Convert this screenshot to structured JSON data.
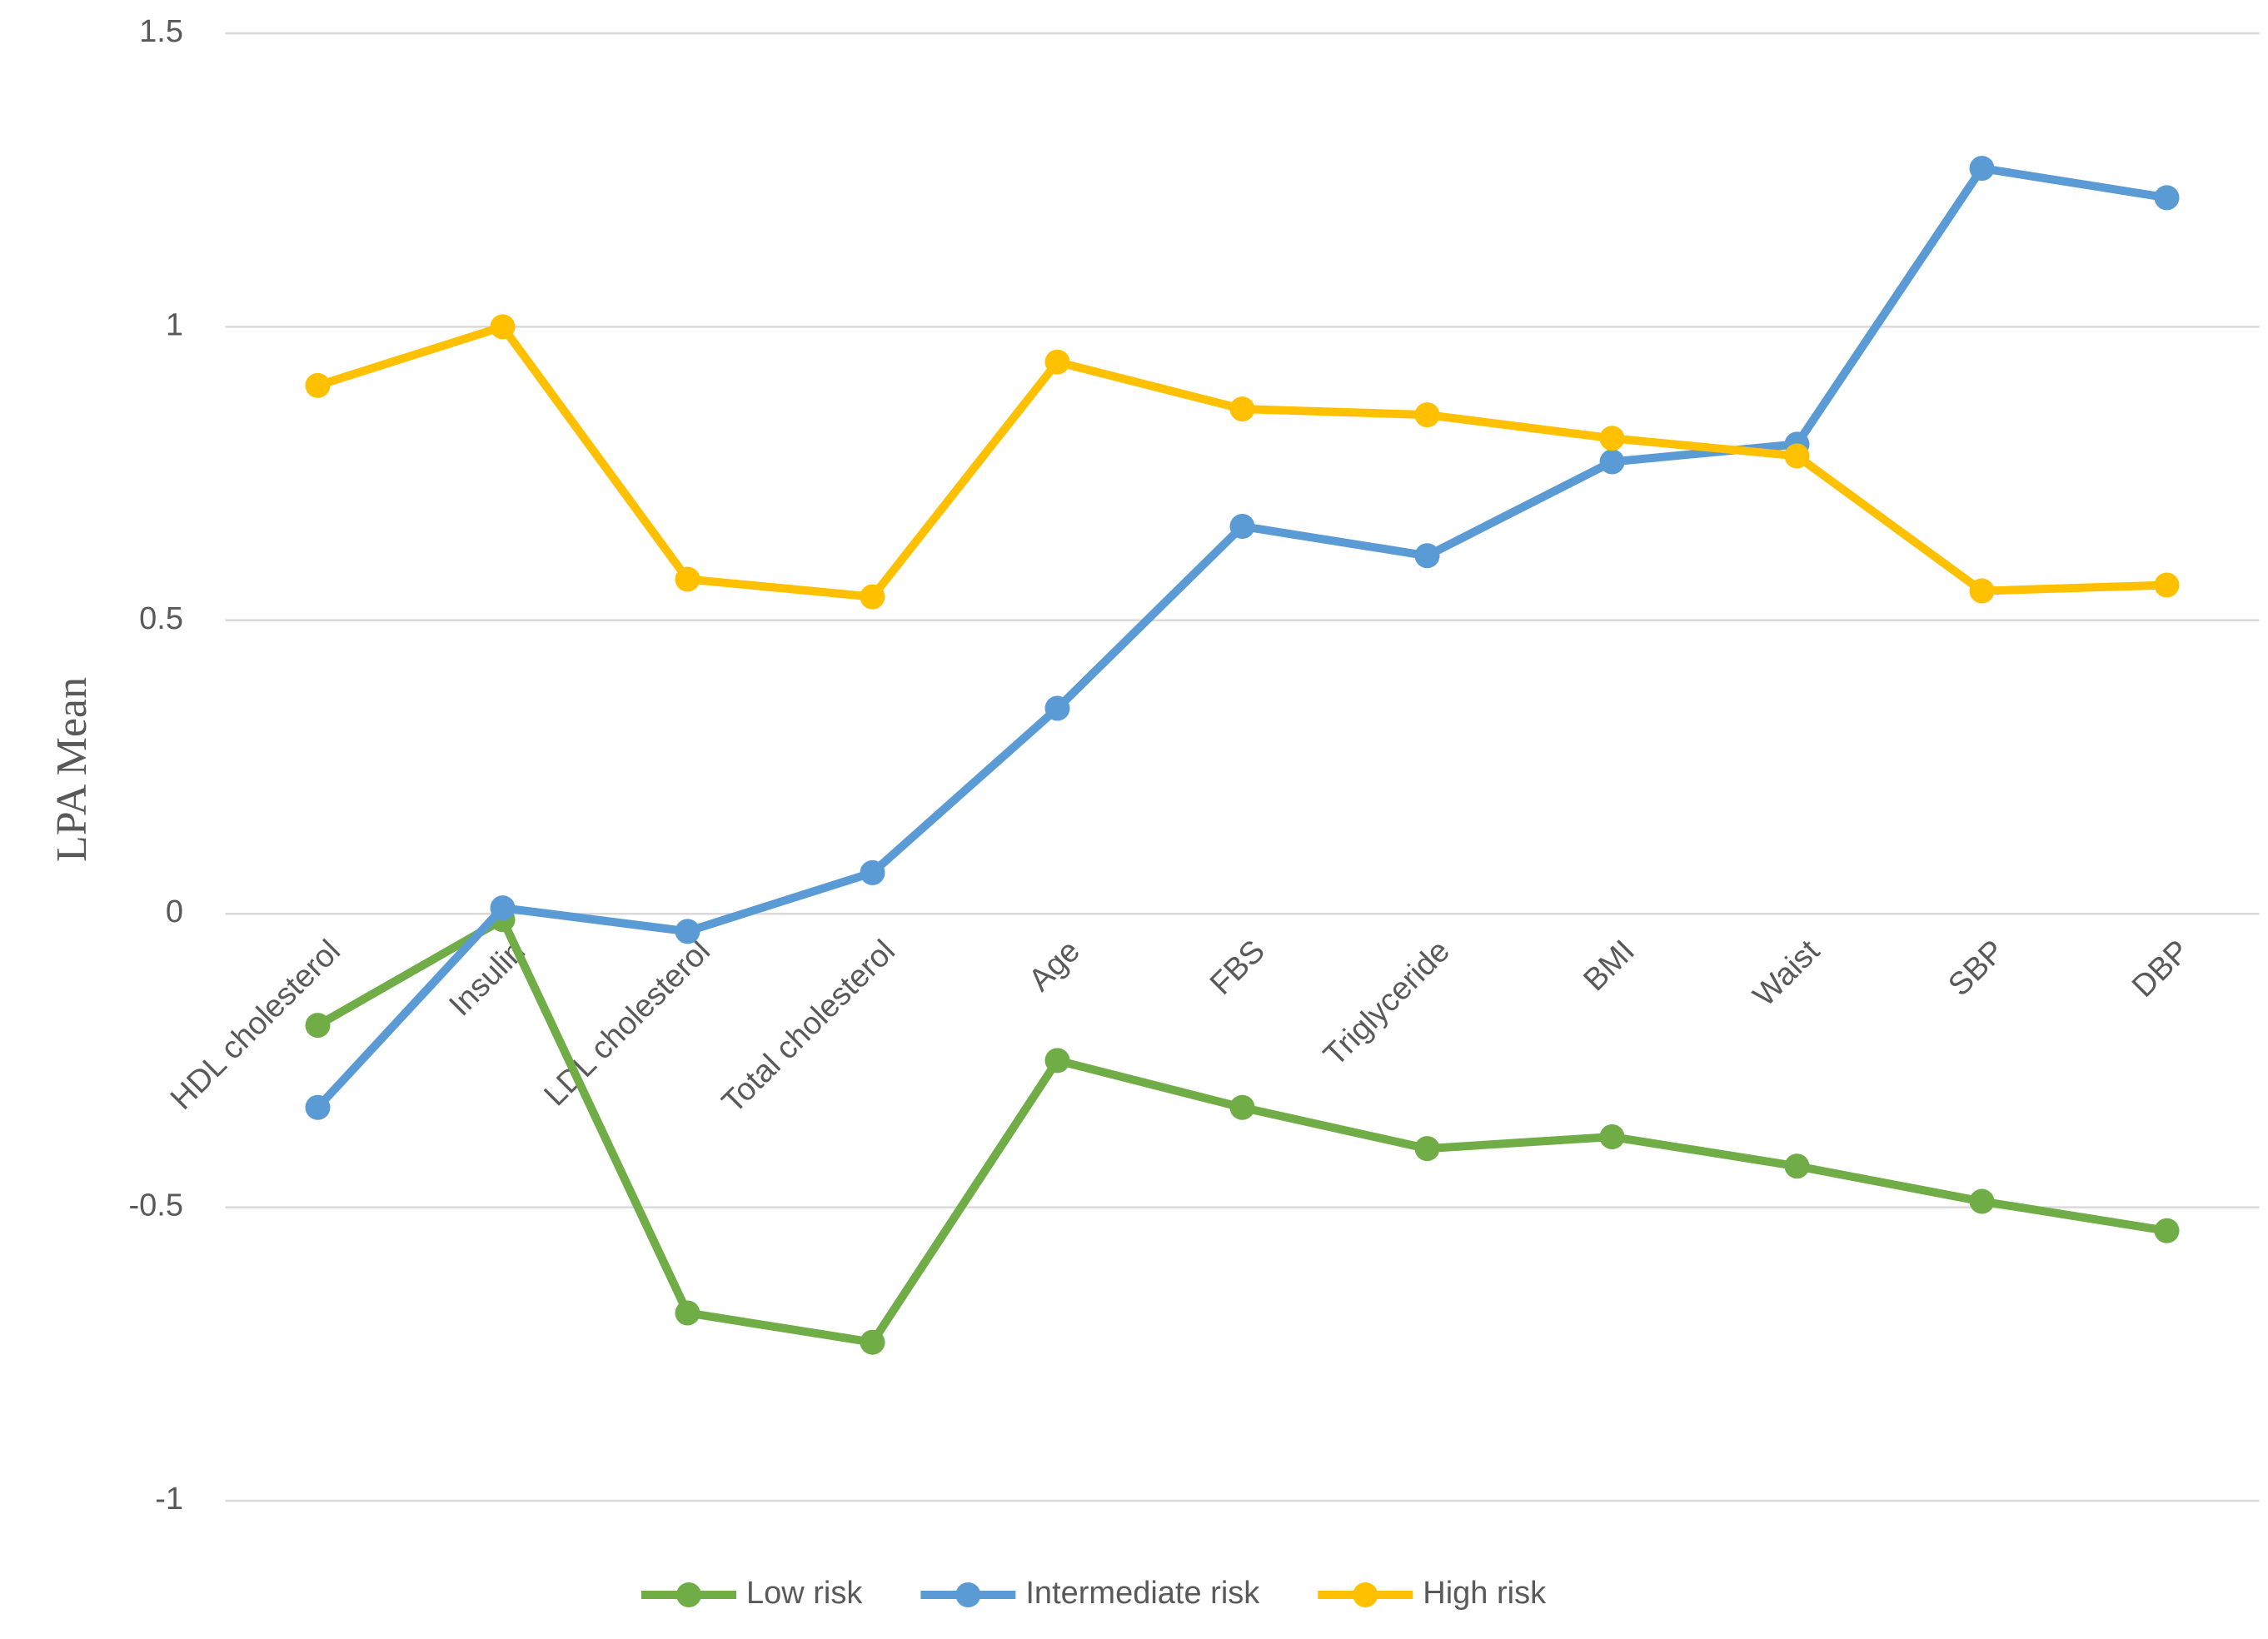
{
  "chart_data": {
    "type": "line",
    "y_label": "LPA Mean",
    "categories": [
      "HDL cholesterol",
      "Insulin",
      "LDL cholesterol",
      "Total cholesterol",
      "Age",
      "FBS",
      "Triglyceride",
      "BMI",
      "Waist",
      "SBP",
      "DBP"
    ],
    "series": [
      {
        "name": "Low risk",
        "color": "#70ad47",
        "values": [
          -0.19,
          -0.01,
          -0.68,
          -0.73,
          -0.25,
          -0.33,
          -0.4,
          -0.38,
          -0.43,
          -0.49,
          -0.54
        ]
      },
      {
        "name": "Intermediate risk",
        "color": "#5b9bd5",
        "values": [
          -0.33,
          0.01,
          -0.03,
          0.07,
          0.35,
          0.66,
          0.61,
          0.77,
          0.8,
          1.27,
          1.22
        ]
      },
      {
        "name": "High risk",
        "color": "#ffc000",
        "values": [
          0.9,
          1.0,
          0.57,
          0.54,
          0.94,
          0.86,
          0.85,
          0.81,
          0.78,
          0.55,
          0.56
        ]
      }
    ],
    "ylim": [
      -1,
      1.5
    ],
    "yticks": [
      -1,
      -0.5,
      0,
      0.5,
      1,
      1.5
    ],
    "grid": true,
    "legend": "bottom"
  }
}
